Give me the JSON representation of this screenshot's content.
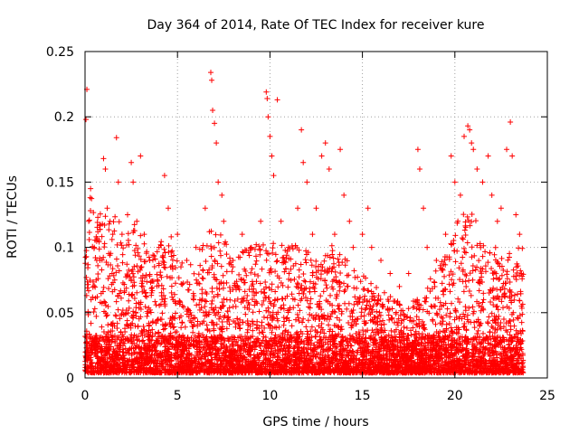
{
  "chart_data": {
    "type": "scatter",
    "title": "Day 364 of 2014, Rate Of TEC Index for receiver kure",
    "xlabel": "GPS time / hours",
    "ylabel": "ROTI / TECUs",
    "xlim": [
      0,
      25
    ],
    "ylim": [
      0,
      0.25
    ],
    "xticks": [
      0,
      5,
      10,
      15,
      20,
      25
    ],
    "xtick_labels": [
      "0",
      "5",
      "10",
      "15",
      "20",
      "25"
    ],
    "yticks": [
      0,
      0.05,
      0.1,
      0.15,
      0.2,
      0.25
    ],
    "ytick_labels": [
      "0",
      "0.05",
      "0.1",
      "0.15",
      "0.2",
      "0.25"
    ],
    "grid": true,
    "marker": "+",
    "color": "#ff0000",
    "series": [
      {
        "x_range": [
          0,
          23.7
        ],
        "points": [
          [
            0.1,
            0.221
          ],
          [
            0.05,
            0.198
          ],
          [
            0.3,
            0.145
          ],
          [
            0.2,
            0.12
          ],
          [
            0.5,
            0.1
          ],
          [
            0.8,
            0.09
          ],
          [
            1.0,
            0.168
          ],
          [
            1.1,
            0.16
          ],
          [
            1.2,
            0.13
          ],
          [
            1.5,
            0.11
          ],
          [
            1.7,
            0.184
          ],
          [
            1.8,
            0.15
          ],
          [
            2.0,
            0.11
          ],
          [
            2.3,
            0.125
          ],
          [
            2.5,
            0.165
          ],
          [
            2.6,
            0.15
          ],
          [
            2.8,
            0.12
          ],
          [
            3.0,
            0.17
          ],
          [
            3.2,
            0.11
          ],
          [
            3.5,
            0.09
          ],
          [
            4.0,
            0.1
          ],
          [
            4.3,
            0.155
          ],
          [
            4.5,
            0.13
          ],
          [
            5.0,
            0.11
          ],
          [
            5.5,
            0.09
          ],
          [
            6.0,
            0.1
          ],
          [
            6.5,
            0.13
          ],
          [
            6.8,
            0.234
          ],
          [
            6.85,
            0.228
          ],
          [
            6.9,
            0.205
          ],
          [
            7.0,
            0.195
          ],
          [
            7.1,
            0.18
          ],
          [
            7.2,
            0.15
          ],
          [
            7.4,
            0.14
          ],
          [
            7.5,
            0.12
          ],
          [
            8.0,
            0.09
          ],
          [
            8.5,
            0.11
          ],
          [
            9.0,
            0.1
          ],
          [
            9.5,
            0.12
          ],
          [
            9.8,
            0.219
          ],
          [
            9.85,
            0.214
          ],
          [
            9.9,
            0.2
          ],
          [
            10.0,
            0.185
          ],
          [
            10.1,
            0.17
          ],
          [
            10.2,
            0.155
          ],
          [
            10.4,
            0.213
          ],
          [
            10.6,
            0.12
          ],
          [
            11.0,
            0.1
          ],
          [
            11.5,
            0.13
          ],
          [
            11.7,
            0.19
          ],
          [
            11.8,
            0.165
          ],
          [
            12.0,
            0.15
          ],
          [
            12.3,
            0.11
          ],
          [
            12.5,
            0.13
          ],
          [
            12.8,
            0.17
          ],
          [
            13.0,
            0.18
          ],
          [
            13.2,
            0.16
          ],
          [
            13.5,
            0.11
          ],
          [
            13.8,
            0.175
          ],
          [
            14.0,
            0.14
          ],
          [
            14.3,
            0.12
          ],
          [
            14.5,
            0.1
          ],
          [
            15.0,
            0.11
          ],
          [
            15.3,
            0.13
          ],
          [
            15.5,
            0.1
          ],
          [
            16.0,
            0.09
          ],
          [
            16.5,
            0.08
          ],
          [
            17.0,
            0.07
          ],
          [
            17.5,
            0.08
          ],
          [
            18.0,
            0.175
          ],
          [
            18.1,
            0.16
          ],
          [
            18.3,
            0.13
          ],
          [
            18.5,
            0.1
          ],
          [
            19.0,
            0.09
          ],
          [
            19.5,
            0.11
          ],
          [
            19.8,
            0.17
          ],
          [
            20.0,
            0.15
          ],
          [
            20.3,
            0.14
          ],
          [
            20.5,
            0.185
          ],
          [
            20.7,
            0.193
          ],
          [
            20.8,
            0.19
          ],
          [
            20.9,
            0.18
          ],
          [
            21.0,
            0.175
          ],
          [
            21.2,
            0.16
          ],
          [
            21.5,
            0.15
          ],
          [
            21.8,
            0.17
          ],
          [
            22.0,
            0.14
          ],
          [
            22.3,
            0.12
          ],
          [
            22.5,
            0.13
          ],
          [
            22.8,
            0.175
          ],
          [
            23.0,
            0.196
          ],
          [
            23.1,
            0.17
          ],
          [
            23.3,
            0.125
          ],
          [
            23.5,
            0.11
          ],
          [
            23.6,
            0.08
          ]
        ],
        "envelope_peaks": [
          [
            0.2,
            0.14
          ],
          [
            1.0,
            0.12
          ],
          [
            2.5,
            0.12
          ],
          [
            3.5,
            0.09
          ],
          [
            4.5,
            0.11
          ],
          [
            5.5,
            0.08
          ],
          [
            7.0,
            0.12
          ],
          [
            8.0,
            0.09
          ],
          [
            9.5,
            0.1
          ],
          [
            10.5,
            0.1
          ],
          [
            11.5,
            0.1
          ],
          [
            12.5,
            0.09
          ],
          [
            13.5,
            0.1
          ],
          [
            14.5,
            0.08
          ],
          [
            15.5,
            0.07
          ],
          [
            16.5,
            0.06
          ],
          [
            17.5,
            0.05
          ],
          [
            18.5,
            0.07
          ],
          [
            19.5,
            0.09
          ],
          [
            20.5,
            0.13
          ],
          [
            21.5,
            0.11
          ],
          [
            22.5,
            0.09
          ],
          [
            23.5,
            0.1
          ]
        ]
      }
    ]
  }
}
